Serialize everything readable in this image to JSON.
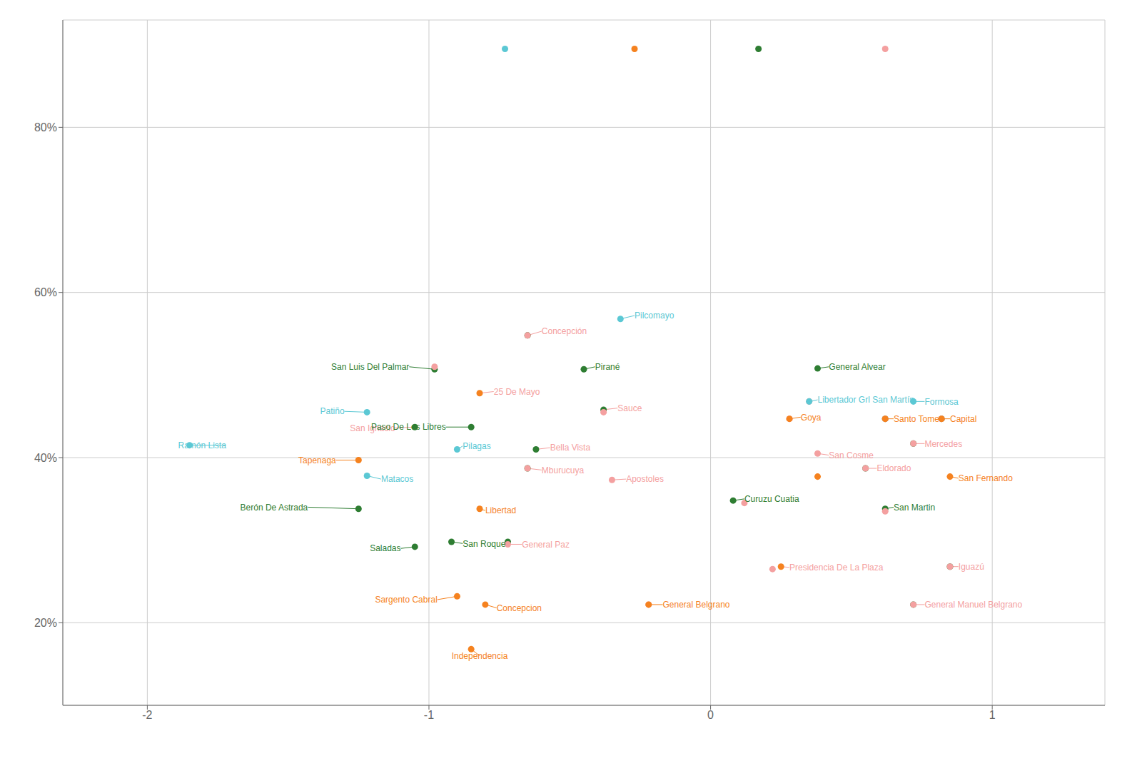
{
  "chart_data": {
    "type": "scatter",
    "grid": true,
    "xlim": [
      -2.3,
      1.4
    ],
    "ylim": [
      0.1,
      0.93
    ],
    "xticks": [
      -2,
      -1,
      0,
      1
    ],
    "yticks": [
      {
        "value": 0.2,
        "label": "20%"
      },
      {
        "value": 0.4,
        "label": "40%"
      },
      {
        "value": 0.6,
        "label": "60%"
      },
      {
        "value": 0.8,
        "label": "80%"
      }
    ],
    "series": [
      {
        "color": "#2e7d32",
        "x": [
          -0.98,
          -0.65,
          -0.85,
          -1.25,
          -1.05,
          -0.92,
          -0.72,
          -0.62,
          -0.65,
          0.08,
          0.38,
          0.62,
          -0.45,
          -0.38,
          0.72,
          0.55,
          0.85,
          0.72,
          0.82,
          0.62,
          -1.05
        ],
        "values": [
          0.507,
          0.548,
          0.437,
          0.338,
          0.292,
          0.298,
          0.298,
          0.41,
          0.387,
          0.348,
          0.508,
          0.338,
          0.507,
          0.458,
          0.417,
          0.387,
          0.268,
          0.222,
          0.447,
          0.447,
          0.437
        ]
      },
      {
        "color": "#f4a0a0",
        "x": [
          -0.65,
          -0.98,
          0.35,
          0.28,
          0.38,
          -0.35,
          -0.72,
          0.12,
          0.62,
          0.22,
          -0.22,
          0.72,
          -0.65,
          0.62,
          -0.38,
          0.55,
          0.85,
          0.72,
          0.82
        ],
        "values": [
          0.548,
          0.51,
          0.468,
          0.447,
          0.405,
          0.373,
          0.295,
          0.345,
          0.335,
          0.265,
          0.222,
          0.222,
          0.387,
          0.447,
          0.455,
          0.387,
          0.268,
          0.417,
          0.447
        ]
      },
      {
        "color": "#f5821f",
        "x": [
          -0.82,
          -1.25,
          -0.82,
          -0.9,
          -0.8,
          -0.85,
          -0.22,
          0.28,
          0.38,
          0.25,
          0.85,
          0.62,
          0.82
        ],
        "values": [
          0.478,
          0.397,
          0.338,
          0.232,
          0.222,
          0.168,
          0.222,
          0.447,
          0.377,
          0.268,
          0.377,
          0.447,
          0.447
        ]
      },
      {
        "color": "#5bc8d4",
        "x": [
          -1.85,
          -1.22,
          -0.32,
          -1.22,
          -0.9,
          0.72,
          0.35
        ],
        "values": [
          0.415,
          0.455,
          0.568,
          0.378,
          0.41,
          0.468,
          0.468
        ]
      },
      {
        "colors": [
          "#5bc8d4",
          "#f5821f",
          "#2e7d32",
          "#f4a0a0"
        ],
        "x": [
          -0.73,
          -0.27,
          0.17,
          0.62
        ],
        "values": [
          0.895,
          0.895,
          0.895,
          0.895
        ]
      }
    ],
    "annotations": [
      {
        "text": "Ramón Lista",
        "x": -1.85,
        "y": 0.415,
        "text_x": -1.72,
        "text_y": 0.415,
        "align": "right",
        "color": "#5bc8d4"
      },
      {
        "text": "Patiño",
        "x": -1.22,
        "y": 0.455,
        "text_x": -1.3,
        "text_y": 0.456,
        "align": "right",
        "color": "#5bc8d4"
      },
      {
        "text": "Pilcomayo",
        "x": -0.32,
        "y": 0.568,
        "text_x": -0.27,
        "text_y": 0.572,
        "align": "left",
        "color": "#5bc8d4"
      },
      {
        "text": "Matacos",
        "x": -1.22,
        "y": 0.378,
        "text_x": -1.17,
        "text_y": 0.374,
        "align": "left",
        "color": "#5bc8d4"
      },
      {
        "text": "Pilagas",
        "x": -0.9,
        "y": 0.41,
        "text_x": -0.88,
        "text_y": 0.414,
        "align": "left",
        "color": "#5bc8d4"
      },
      {
        "text": "Formosa",
        "x": 0.72,
        "y": 0.468,
        "text_x": 0.76,
        "text_y": 0.468,
        "align": "left",
        "color": "#5bc8d4"
      },
      {
        "text": "Libertador Grl San Martín",
        "x": 0.35,
        "y": 0.468,
        "text_x": 0.38,
        "text_y": 0.47,
        "align": "left",
        "color": "#5bc8d4"
      },
      {
        "text": "Concepción",
        "x": -0.65,
        "y": 0.548,
        "text_x": -0.6,
        "text_y": 0.553,
        "align": "left",
        "color": "#f4a0a0"
      },
      {
        "text": "25 De Mayo",
        "x": -0.82,
        "y": 0.478,
        "text_x": -0.77,
        "text_y": 0.48,
        "align": "left",
        "color": "#f4a0a0"
      },
      {
        "text": "San Ignacio",
        "x": -1.05,
        "y": 0.437,
        "text_x": -1.12,
        "text_y": 0.436,
        "align": "right",
        "color": "#f4a0a0"
      },
      {
        "text": "Sauce",
        "x": -0.38,
        "y": 0.458,
        "text_x": -0.33,
        "text_y": 0.46,
        "align": "left",
        "color": "#f4a0a0"
      },
      {
        "text": "Bella Vista",
        "x": -0.62,
        "y": 0.41,
        "text_x": -0.57,
        "text_y": 0.412,
        "align": "left",
        "color": "#f4a0a0"
      },
      {
        "text": "Mburucuya",
        "x": -0.65,
        "y": 0.387,
        "text_x": -0.6,
        "text_y": 0.385,
        "align": "left",
        "color": "#f4a0a0"
      },
      {
        "text": "Apostoles",
        "x": -0.35,
        "y": 0.373,
        "text_x": -0.3,
        "text_y": 0.374,
        "align": "left",
        "color": "#f4a0a0"
      },
      {
        "text": "Eldorado",
        "x": 0.55,
        "y": 0.387,
        "text_x": 0.59,
        "text_y": 0.387,
        "align": "left",
        "color": "#f4a0a0"
      },
      {
        "text": "General Paz",
        "x": -0.72,
        "y": 0.295,
        "text_x": -0.67,
        "text_y": 0.295,
        "align": "left",
        "color": "#f4a0a0"
      },
      {
        "text": "General Belgrano",
        "x": -0.22,
        "y": 0.222,
        "text_x": -0.17,
        "text_y": 0.222,
        "align": "left",
        "color": "#f5821f"
      },
      {
        "text": "General Manuel Belgrano",
        "x": 0.72,
        "y": 0.222,
        "text_x": 0.76,
        "text_y": 0.222,
        "align": "left",
        "color": "#f4a0a0"
      },
      {
        "text": "Presidencia De La Plaza",
        "x": 0.25,
        "y": 0.268,
        "text_x": 0.28,
        "text_y": 0.267,
        "align": "left",
        "color": "#f4a0a0"
      },
      {
        "text": "Iguazú",
        "x": 0.85,
        "y": 0.268,
        "text_x": 0.88,
        "text_y": 0.268,
        "align": "left",
        "color": "#f4a0a0"
      },
      {
        "text": "San Cosme",
        "x": 0.38,
        "y": 0.405,
        "text_x": 0.42,
        "text_y": 0.403,
        "align": "left",
        "color": "#f4a0a0"
      },
      {
        "text": "Mercedes",
        "x": 0.72,
        "y": 0.417,
        "text_x": 0.76,
        "text_y": 0.417,
        "align": "left",
        "color": "#f4a0a0"
      },
      {
        "text": "San Fernando",
        "x": 0.85,
        "y": 0.377,
        "text_x": 0.88,
        "text_y": 0.375,
        "align": "left",
        "color": "#f5821f"
      },
      {
        "text": "Goya",
        "x": 0.28,
        "y": 0.447,
        "text_x": 0.32,
        "text_y": 0.449,
        "align": "left",
        "color": "#f5821f"
      },
      {
        "text": "Santo Tome",
        "x": 0.62,
        "y": 0.447,
        "text_x": 0.65,
        "text_y": 0.447,
        "align": "left",
        "color": "#f5821f"
      },
      {
        "text": "Capital",
        "x": 0.82,
        "y": 0.447,
        "text_x": 0.85,
        "text_y": 0.447,
        "align": "left",
        "color": "#f5821f"
      },
      {
        "text": "Tapenaga",
        "x": -1.25,
        "y": 0.397,
        "text_x": -1.33,
        "text_y": 0.397,
        "align": "right",
        "color": "#f5821f"
      },
      {
        "text": "Libertad",
        "x": -0.82,
        "y": 0.338,
        "text_x": -0.8,
        "text_y": 0.336,
        "align": "left",
        "color": "#f5821f"
      },
      {
        "text": "Sargento Cabral",
        "x": -0.9,
        "y": 0.232,
        "text_x": -0.97,
        "text_y": 0.228,
        "align": "right",
        "color": "#f5821f"
      },
      {
        "text": "Concepcion",
        "x": -0.8,
        "y": 0.222,
        "text_x": -0.76,
        "text_y": 0.218,
        "align": "left",
        "color": "#f5821f"
      },
      {
        "text": "Independencia",
        "x": -0.85,
        "y": 0.168,
        "text_x": -0.82,
        "text_y": 0.16,
        "align": "center",
        "color": "#f5821f"
      },
      {
        "text": "San Luis Del Palmar",
        "x": -0.98,
        "y": 0.507,
        "text_x": -1.07,
        "text_y": 0.51,
        "align": "right",
        "color": "#2e7d32"
      },
      {
        "text": "Paso De Los Libres",
        "x": -0.85,
        "y": 0.437,
        "text_x": -0.94,
        "text_y": 0.437,
        "align": "right",
        "color": "#2e7d32"
      },
      {
        "text": "Berón De Astrada",
        "x": -1.25,
        "y": 0.338,
        "text_x": -1.43,
        "text_y": 0.34,
        "align": "right",
        "color": "#2e7d32"
      },
      {
        "text": "Saladas",
        "x": -1.05,
        "y": 0.292,
        "text_x": -1.1,
        "text_y": 0.29,
        "align": "right",
        "color": "#2e7d32"
      },
      {
        "text": "San Roque",
        "x": -0.92,
        "y": 0.298,
        "text_x": -0.88,
        "text_y": 0.296,
        "align": "left",
        "color": "#2e7d32"
      },
      {
        "text": "Curuzu Cuatia",
        "x": 0.08,
        "y": 0.348,
        "text_x": 0.12,
        "text_y": 0.35,
        "align": "left",
        "color": "#2e7d32"
      },
      {
        "text": "General Alvear",
        "x": 0.38,
        "y": 0.508,
        "text_x": 0.42,
        "text_y": 0.51,
        "align": "left",
        "color": "#2e7d32"
      },
      {
        "text": "San Martin",
        "x": 0.62,
        "y": 0.338,
        "text_x": 0.65,
        "text_y": 0.34,
        "align": "left",
        "color": "#2e7d32"
      },
      {
        "text": "Pirané",
        "x": -0.45,
        "y": 0.507,
        "text_x": -0.41,
        "text_y": 0.51,
        "align": "left",
        "color": "#2e7d32"
      }
    ]
  }
}
